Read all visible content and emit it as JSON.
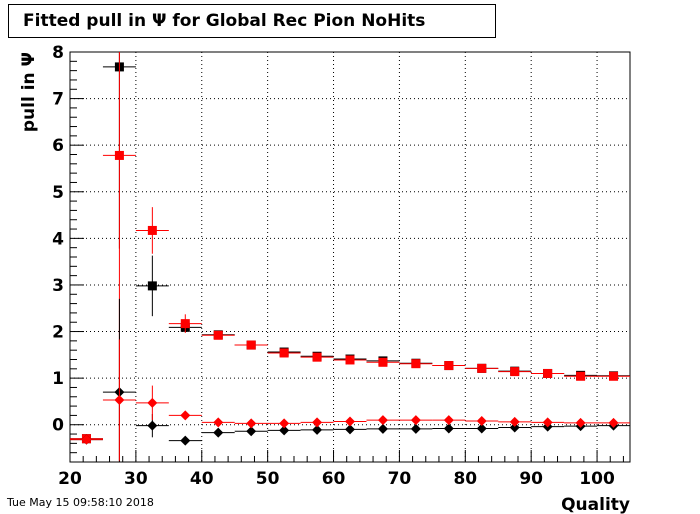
{
  "title": "Fitted pull in  Ψ  for Global Rec Pion NoHits",
  "timestamp": "Tue May 15 09:58:10 2018",
  "chart_data": {
    "type": "scatter",
    "title": "Fitted pull in  Ψ  for Global Rec Pion NoHits",
    "xlabel": "Quality",
    "ylabel": "pull in  Ψ",
    "xlim": [
      20,
      105
    ],
    "ylim": [
      -0.8,
      8
    ],
    "xticks": [
      20,
      30,
      40,
      50,
      60,
      70,
      80,
      90,
      100
    ],
    "yticks": [
      0,
      1,
      2,
      3,
      4,
      5,
      6,
      7,
      8
    ],
    "grid": true,
    "bin_width": 5,
    "series": [
      {
        "marker": "square",
        "color": "#000000",
        "x": [
          22.5,
          27.5,
          32.5,
          37.5,
          42.5,
          47.5,
          52.5,
          57.5,
          62.5,
          67.5,
          72.5,
          77.5,
          82.5,
          87.5,
          92.5,
          97.5,
          102.5
        ],
        "y": [
          -0.3,
          7.68,
          2.98,
          2.09,
          1.93,
          1.71,
          1.56,
          1.47,
          1.41,
          1.37,
          1.32,
          1.27,
          1.21,
          1.15,
          1.1,
          1.06,
          1.05
        ],
        "yerr": [
          0.1,
          3.9,
          0.65,
          0.08,
          0.05,
          0.04,
          0.04,
          0.04,
          0.04,
          0.04,
          0.03,
          0.03,
          0.03,
          0.03,
          0.03,
          0.03,
          0.03
        ]
      },
      {
        "marker": "square",
        "color": "#ff0000",
        "x": [
          22.5,
          27.5,
          32.5,
          37.5,
          42.5,
          47.5,
          52.5,
          57.5,
          62.5,
          67.5,
          72.5,
          77.5,
          82.5,
          87.5,
          92.5,
          97.5,
          102.5
        ],
        "y": [
          -0.3,
          5.78,
          4.17,
          2.17,
          1.92,
          1.71,
          1.54,
          1.45,
          1.39,
          1.34,
          1.31,
          1.27,
          1.21,
          1.14,
          1.1,
          1.04,
          1.04
        ],
        "yerr": [
          0.1,
          6.6,
          0.5,
          0.2,
          0.05,
          0.04,
          0.04,
          0.04,
          0.04,
          0.04,
          0.03,
          0.03,
          0.03,
          0.03,
          0.03,
          0.03,
          0.03
        ]
      },
      {
        "marker": "diamond",
        "color": "#000000",
        "x": [
          22.5,
          27.5,
          32.5,
          37.5,
          42.5,
          47.5,
          52.5,
          57.5,
          62.5,
          67.5,
          72.5,
          77.5,
          82.5,
          87.5,
          92.5,
          97.5,
          102.5
        ],
        "y": [
          -0.32,
          0.7,
          -0.02,
          -0.34,
          -0.17,
          -0.14,
          -0.12,
          -0.11,
          -0.1,
          -0.09,
          -0.09,
          -0.08,
          -0.08,
          -0.06,
          -0.04,
          -0.03,
          -0.02
        ],
        "yerr": [
          0.05,
          2.0,
          0.25,
          0.05,
          0.03,
          0.03,
          0.03,
          0.03,
          0.03,
          0.03,
          0.03,
          0.03,
          0.03,
          0.03,
          0.03,
          0.03,
          0.03
        ]
      },
      {
        "marker": "diamond",
        "color": "#ff0000",
        "x": [
          22.5,
          27.5,
          32.5,
          37.5,
          42.5,
          47.5,
          52.5,
          57.5,
          62.5,
          67.5,
          72.5,
          77.5,
          82.5,
          87.5,
          92.5,
          97.5,
          102.5
        ],
        "y": [
          -0.32,
          0.53,
          0.47,
          0.2,
          0.05,
          0.03,
          0.03,
          0.05,
          0.07,
          0.1,
          0.1,
          0.1,
          0.08,
          0.06,
          0.05,
          0.04,
          0.04
        ],
        "yerr": [
          0.05,
          1.3,
          0.37,
          0.05,
          0.03,
          0.03,
          0.03,
          0.03,
          0.03,
          0.03,
          0.03,
          0.03,
          0.03,
          0.03,
          0.03,
          0.03,
          0.03
        ]
      }
    ]
  }
}
